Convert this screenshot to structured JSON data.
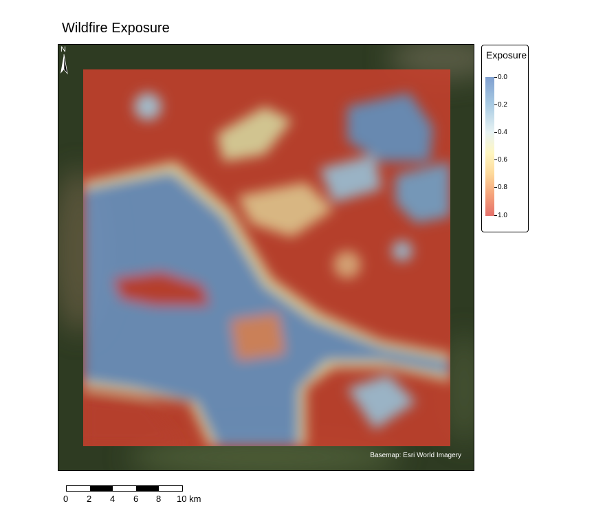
{
  "title": "Wildfire Exposure",
  "legend": {
    "title": "Exposure",
    "ticks": [
      "0.0",
      "0.2",
      "0.4",
      "0.6",
      "0.8",
      "1.0"
    ],
    "colors": [
      "#7f9fcf",
      "#a9cbe3",
      "#e8f3f3",
      "#fff6c0",
      "#fdd89a",
      "#f5a27a",
      "#e4706a"
    ],
    "range": [
      0,
      1
    ]
  },
  "basemap_credit": "Basemap: Esri World Imagery",
  "north_arrow": {
    "label": "N"
  },
  "scale_bar": {
    "labels": [
      "0",
      "2",
      "4",
      "6",
      "8",
      "10 km"
    ]
  }
}
